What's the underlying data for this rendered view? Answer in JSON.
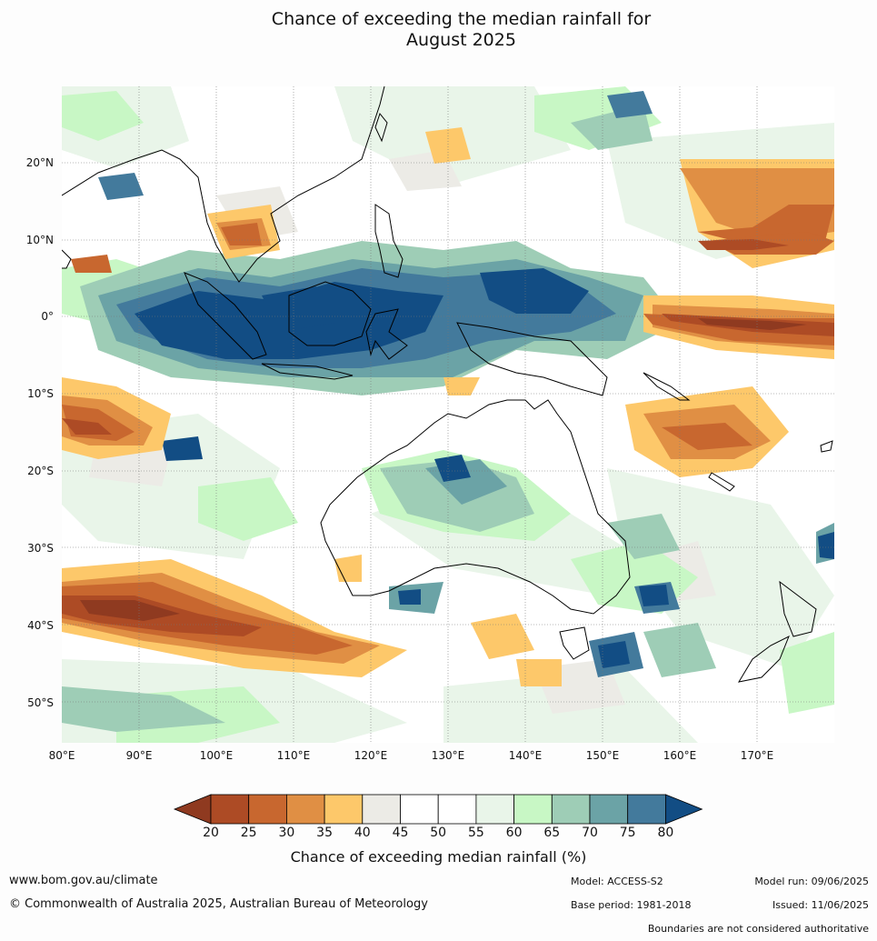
{
  "title_line1": "Chance of exceeding the median rainfall for",
  "title_line2": "August 2025",
  "map": {
    "lat_labels": [
      "20°N",
      "10°N",
      "0°",
      "10°S",
      "20°S",
      "30°S",
      "40°S",
      "50°S"
    ],
    "lon_labels": [
      "80°E",
      "90°E",
      "100°E",
      "110°E",
      "120°E",
      "130°E",
      "140°E",
      "150°E",
      "160°E",
      "170°E"
    ]
  },
  "colorbar": {
    "ticks": [
      "20",
      "25",
      "30",
      "35",
      "40",
      "45",
      "50",
      "55",
      "60",
      "65",
      "70",
      "75",
      "80"
    ],
    "colors": [
      "#8f3a20",
      "#ad4b25",
      "#c8672f",
      "#e08f44",
      "#fdc86a",
      "#ecebe6",
      "#ffffff",
      "#ffffff",
      "#e9f5e9",
      "#c8f7c5",
      "#9ecdb6",
      "#6ba3a6",
      "#437a9c",
      "#124d84"
    ],
    "label": "Chance of exceeding median rainfall (%)"
  },
  "footer": {
    "url": "www.bom.gov.au/climate",
    "copyright": "© Commonwealth of Australia 2025, Australian Bureau of Meteorology",
    "model": "Model: ACCESS-S2",
    "base_period": "Base period: 1981-2018",
    "model_run": "Model run: 09/06/2025",
    "issued": "Issued: 11/06/2025",
    "disclaimer": "Boundaries are not considered authoritative"
  }
}
